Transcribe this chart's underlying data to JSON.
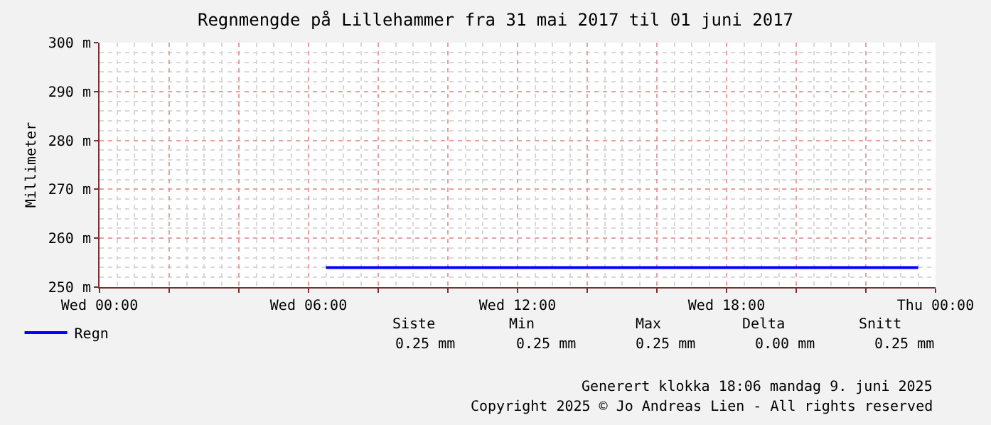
{
  "chart_data": {
    "type": "line",
    "title": "Regnmengde på Lillehammer fra 31 mai 2017 til 01 juni 2017",
    "ylabel": "Millimeter",
    "x": [
      "2017-05-31T06:30",
      "2017-05-31T23:30"
    ],
    "series": [
      {
        "name": "Regn",
        "color": "#0000ff",
        "values": [
          254,
          254
        ]
      }
    ],
    "xlim": [
      "2017-05-31T00:00",
      "2017-06-01T00:00"
    ],
    "xticks": [
      {
        "value": "2017-05-31T00:00",
        "label": "Wed 00:00"
      },
      {
        "value": "2017-05-31T02:00",
        "label": null
      },
      {
        "value": "2017-05-31T04:00",
        "label": null
      },
      {
        "value": "2017-05-31T06:00",
        "label": "Wed 06:00"
      },
      {
        "value": "2017-05-31T08:00",
        "label": null
      },
      {
        "value": "2017-05-31T10:00",
        "label": null
      },
      {
        "value": "2017-05-31T12:00",
        "label": "Wed 12:00"
      },
      {
        "value": "2017-05-31T14:00",
        "label": null
      },
      {
        "value": "2017-05-31T16:00",
        "label": null
      },
      {
        "value": "2017-05-31T18:00",
        "label": "Wed 18:00"
      },
      {
        "value": "2017-05-31T20:00",
        "label": null
      },
      {
        "value": "2017-05-31T22:00",
        "label": null
      },
      {
        "value": "2017-06-01T00:00",
        "label": "Thu 00:00"
      }
    ],
    "ylim": [
      250,
      300
    ],
    "yticks": [
      {
        "value": 250,
        "label": "250 m"
      },
      {
        "value": 260,
        "label": "260 m"
      },
      {
        "value": 270,
        "label": "270 m"
      },
      {
        "value": 280,
        "label": "280 m"
      },
      {
        "value": 290,
        "label": "290 m"
      },
      {
        "value": 300,
        "label": "300 m"
      }
    ],
    "grid": true,
    "legend": "bottom left",
    "marker": "none",
    "line_style": "solid",
    "annotations": [
      "Siste",
      "Min",
      "Max",
      "Delta",
      "Snitt",
      "0.25 mm",
      "0.25 mm",
      "0.25 mm",
      "0.00 mm",
      "0.25 mm",
      "Generert klokka 18:06 mandag 9. juni 2025",
      "Copyright 2025 © Jo Andreas Lien - All rights reserved"
    ]
  }
}
